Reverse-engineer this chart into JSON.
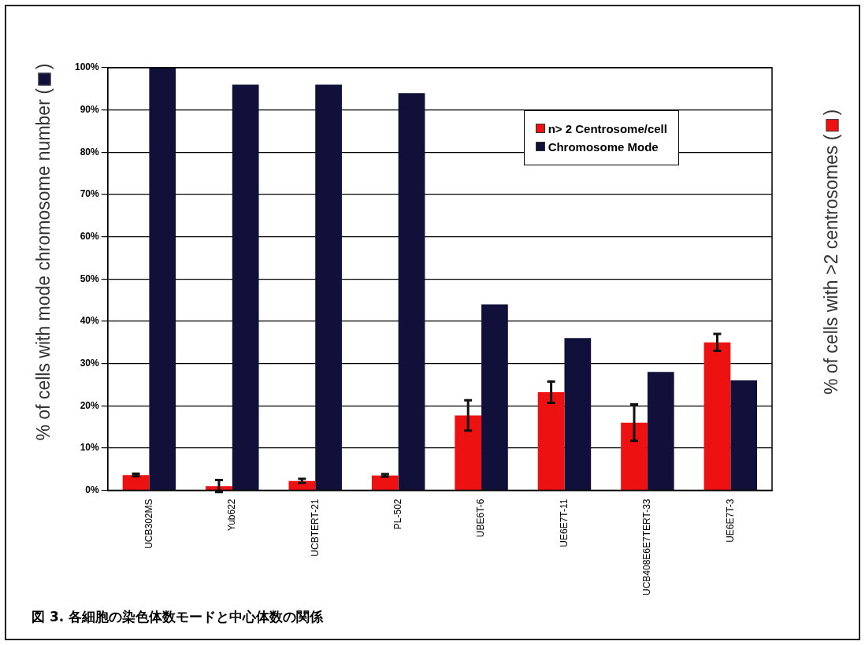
{
  "chart_data": {
    "type": "bar",
    "ylabel": "% of cells with mode chromosome number ()",
    "y2label": "% of cells with >2 centrosomes ()",
    "annotations": [
      "図 3. 各細胞の染色体数モードと中心体数の関係"
    ],
    "categories": [
      "UCB302MS",
      "Yub622",
      "UCBTERT-21",
      "PL-502",
      "UBE6T-6",
      "UE6E7T-11",
      "UCB408E6E7TERT-33",
      "UE6E7T-3"
    ],
    "series": [
      {
        "name": "n> 2 Centrosome/cell",
        "color": "#ee1111",
        "values": [
          3.6,
          1.0,
          2.2,
          3.5,
          17.7,
          23.2,
          16.0,
          35.0
        ],
        "errors": [
          0.3,
          1.4,
          0.5,
          0.3,
          3.6,
          2.5,
          4.3,
          2.0
        ]
      },
      {
        "name": "Chromosome Mode",
        "color": "#10103a",
        "values": [
          100,
          96,
          96,
          94,
          44,
          36,
          28,
          26
        ]
      }
    ],
    "ylim": [
      0,
      100
    ],
    "yticks": [
      {
        "value": 0,
        "label": "0%"
      },
      {
        "value": 10,
        "label": "10%"
      },
      {
        "value": 20,
        "label": "20%"
      },
      {
        "value": 30,
        "label": "30%"
      },
      {
        "value": 40,
        "label": "40%"
      },
      {
        "value": 50,
        "label": "50%"
      },
      {
        "value": 60,
        "label": "60%"
      },
      {
        "value": 70,
        "label": "70%"
      },
      {
        "value": 80,
        "label": "80%"
      },
      {
        "value": 90,
        "label": "90%"
      },
      {
        "value": 100,
        "label": "100%"
      }
    ],
    "grid": "y",
    "legend": "top right"
  }
}
